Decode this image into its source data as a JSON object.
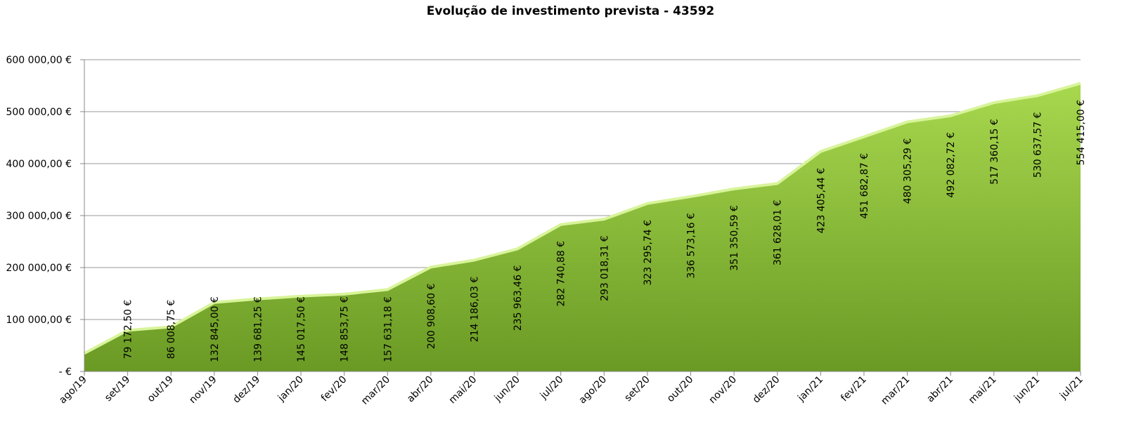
{
  "chart_data": {
    "type": "area",
    "title": "Evolução de investimento prevista - 43592",
    "xlabel": "",
    "ylabel": "",
    "ylim": [
      0,
      600000
    ],
    "grid": true,
    "legend": "none",
    "colors": {
      "fill_top": "#a8d84e",
      "fill_bottom": "#6a9a24",
      "line": "#d8f49a",
      "grid": "#999999"
    },
    "y_ticks": [
      {
        "value": 0,
        "label": "-   €"
      },
      {
        "value": 100000,
        "label": "100 000,00 €"
      },
      {
        "value": 200000,
        "label": "200 000,00 €"
      },
      {
        "value": 300000,
        "label": "300 000,00 €"
      },
      {
        "value": 400000,
        "label": "400 000,00 €"
      },
      {
        "value": 500000,
        "label": "500 000,00 €"
      },
      {
        "value": 600000,
        "label": "600 000,00 €"
      }
    ],
    "categories": [
      "ago/19",
      "set/19",
      "out/19",
      "nov/19",
      "dez/19",
      "jan/20",
      "fev/20",
      "mar/20",
      "abr/20",
      "mai/20",
      "jun/20",
      "jul/20",
      "ago/20",
      "set/20",
      "out/20",
      "nov/20",
      "dez/20",
      "jan/21",
      "fev/21",
      "mar/21",
      "abr/21",
      "mai/21",
      "jun/21",
      "jul/21"
    ],
    "values": [
      35000,
      79172.5,
      86008.75,
      132845.0,
      139681.25,
      145017.5,
      148853.75,
      157631.18,
      200908.6,
      214186.03,
      235963.46,
      282740.88,
      293018.31,
      323295.74,
      336573.16,
      351350.59,
      361628.01,
      423405.44,
      451682.87,
      480305.29,
      492082.72,
      517360.15,
      530637.57,
      554415.0
    ],
    "data_labels": [
      "",
      "79 172,50 €",
      "86 008,75 €",
      "132 845,00 €",
      "139 681,25 €",
      "145 017,50 €",
      "148 853,75 €",
      "157 631,18 €",
      "200 908,60 €",
      "214 186,03 €",
      "235 963,46 €",
      "282 740,88 €",
      "293 018,31 €",
      "323 295,74 €",
      "336 573,16 €",
      "351 350,59 €",
      "361 628,01 €",
      "423 405,44 €",
      "451 682,87 €",
      "480 305,29 €",
      "492 082,72 €",
      "517 360,15 €",
      "530 637,57 €",
      "554 415,00 €"
    ]
  }
}
